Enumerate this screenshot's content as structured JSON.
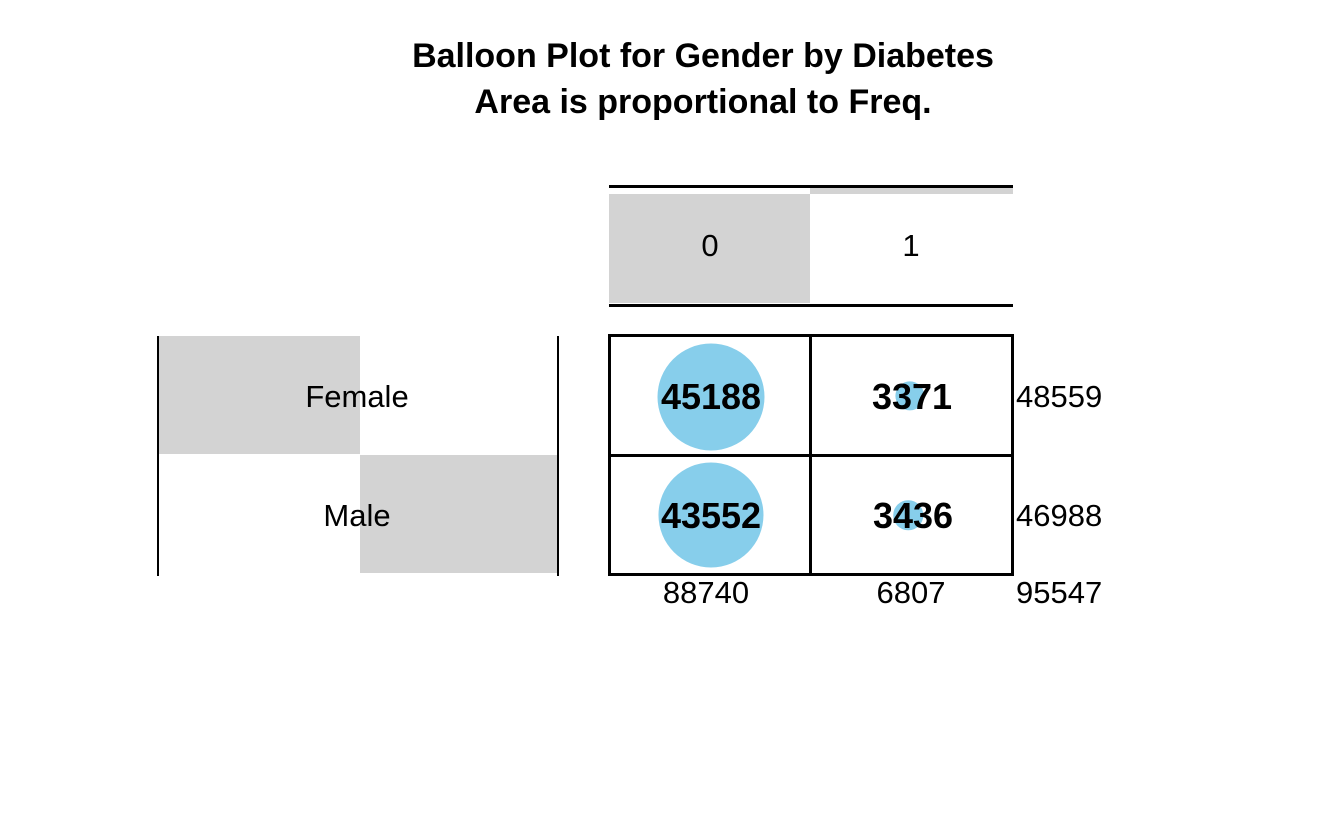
{
  "title": {
    "line1": "Balloon Plot for Gender by Diabetes",
    "line2": "Area is proportional to Freq."
  },
  "colors": {
    "balloon": "#87CEEB",
    "shade": "#D3D3D3",
    "line": "#000000",
    "text": "#000000",
    "background": "#FFFFFF"
  },
  "table": {
    "col_headers": [
      "0",
      "1"
    ],
    "row_headers": [
      "Female",
      "Male"
    ],
    "cells": [
      [
        "45188",
        "3371"
      ],
      [
        "43552",
        "3436"
      ]
    ],
    "row_totals": [
      "48559",
      "46988"
    ],
    "col_totals": [
      "88740",
      "6807"
    ],
    "grand_total": "95547"
  },
  "chart_data": {
    "type": "table",
    "subtype": "balloon_plot",
    "title": "Balloon Plot for Gender by Diabetes",
    "subtitle": "Area is proportional to Freq.",
    "x_variable": "Diabetes",
    "y_variable": "Gender",
    "columns": [
      "0",
      "1"
    ],
    "rows": [
      "Female",
      "Male"
    ],
    "values": [
      [
        45188,
        3371
      ],
      [
        43552,
        3436
      ]
    ],
    "row_totals": [
      48559,
      46988
    ],
    "col_totals": [
      88740,
      6807
    ],
    "grand_total": 95547,
    "balloon_area_proportional_to": "Freq",
    "balloon_color": "#87CEEB",
    "max_balloon_radius_px": 53.5,
    "legend": "none",
    "grid": "off"
  }
}
